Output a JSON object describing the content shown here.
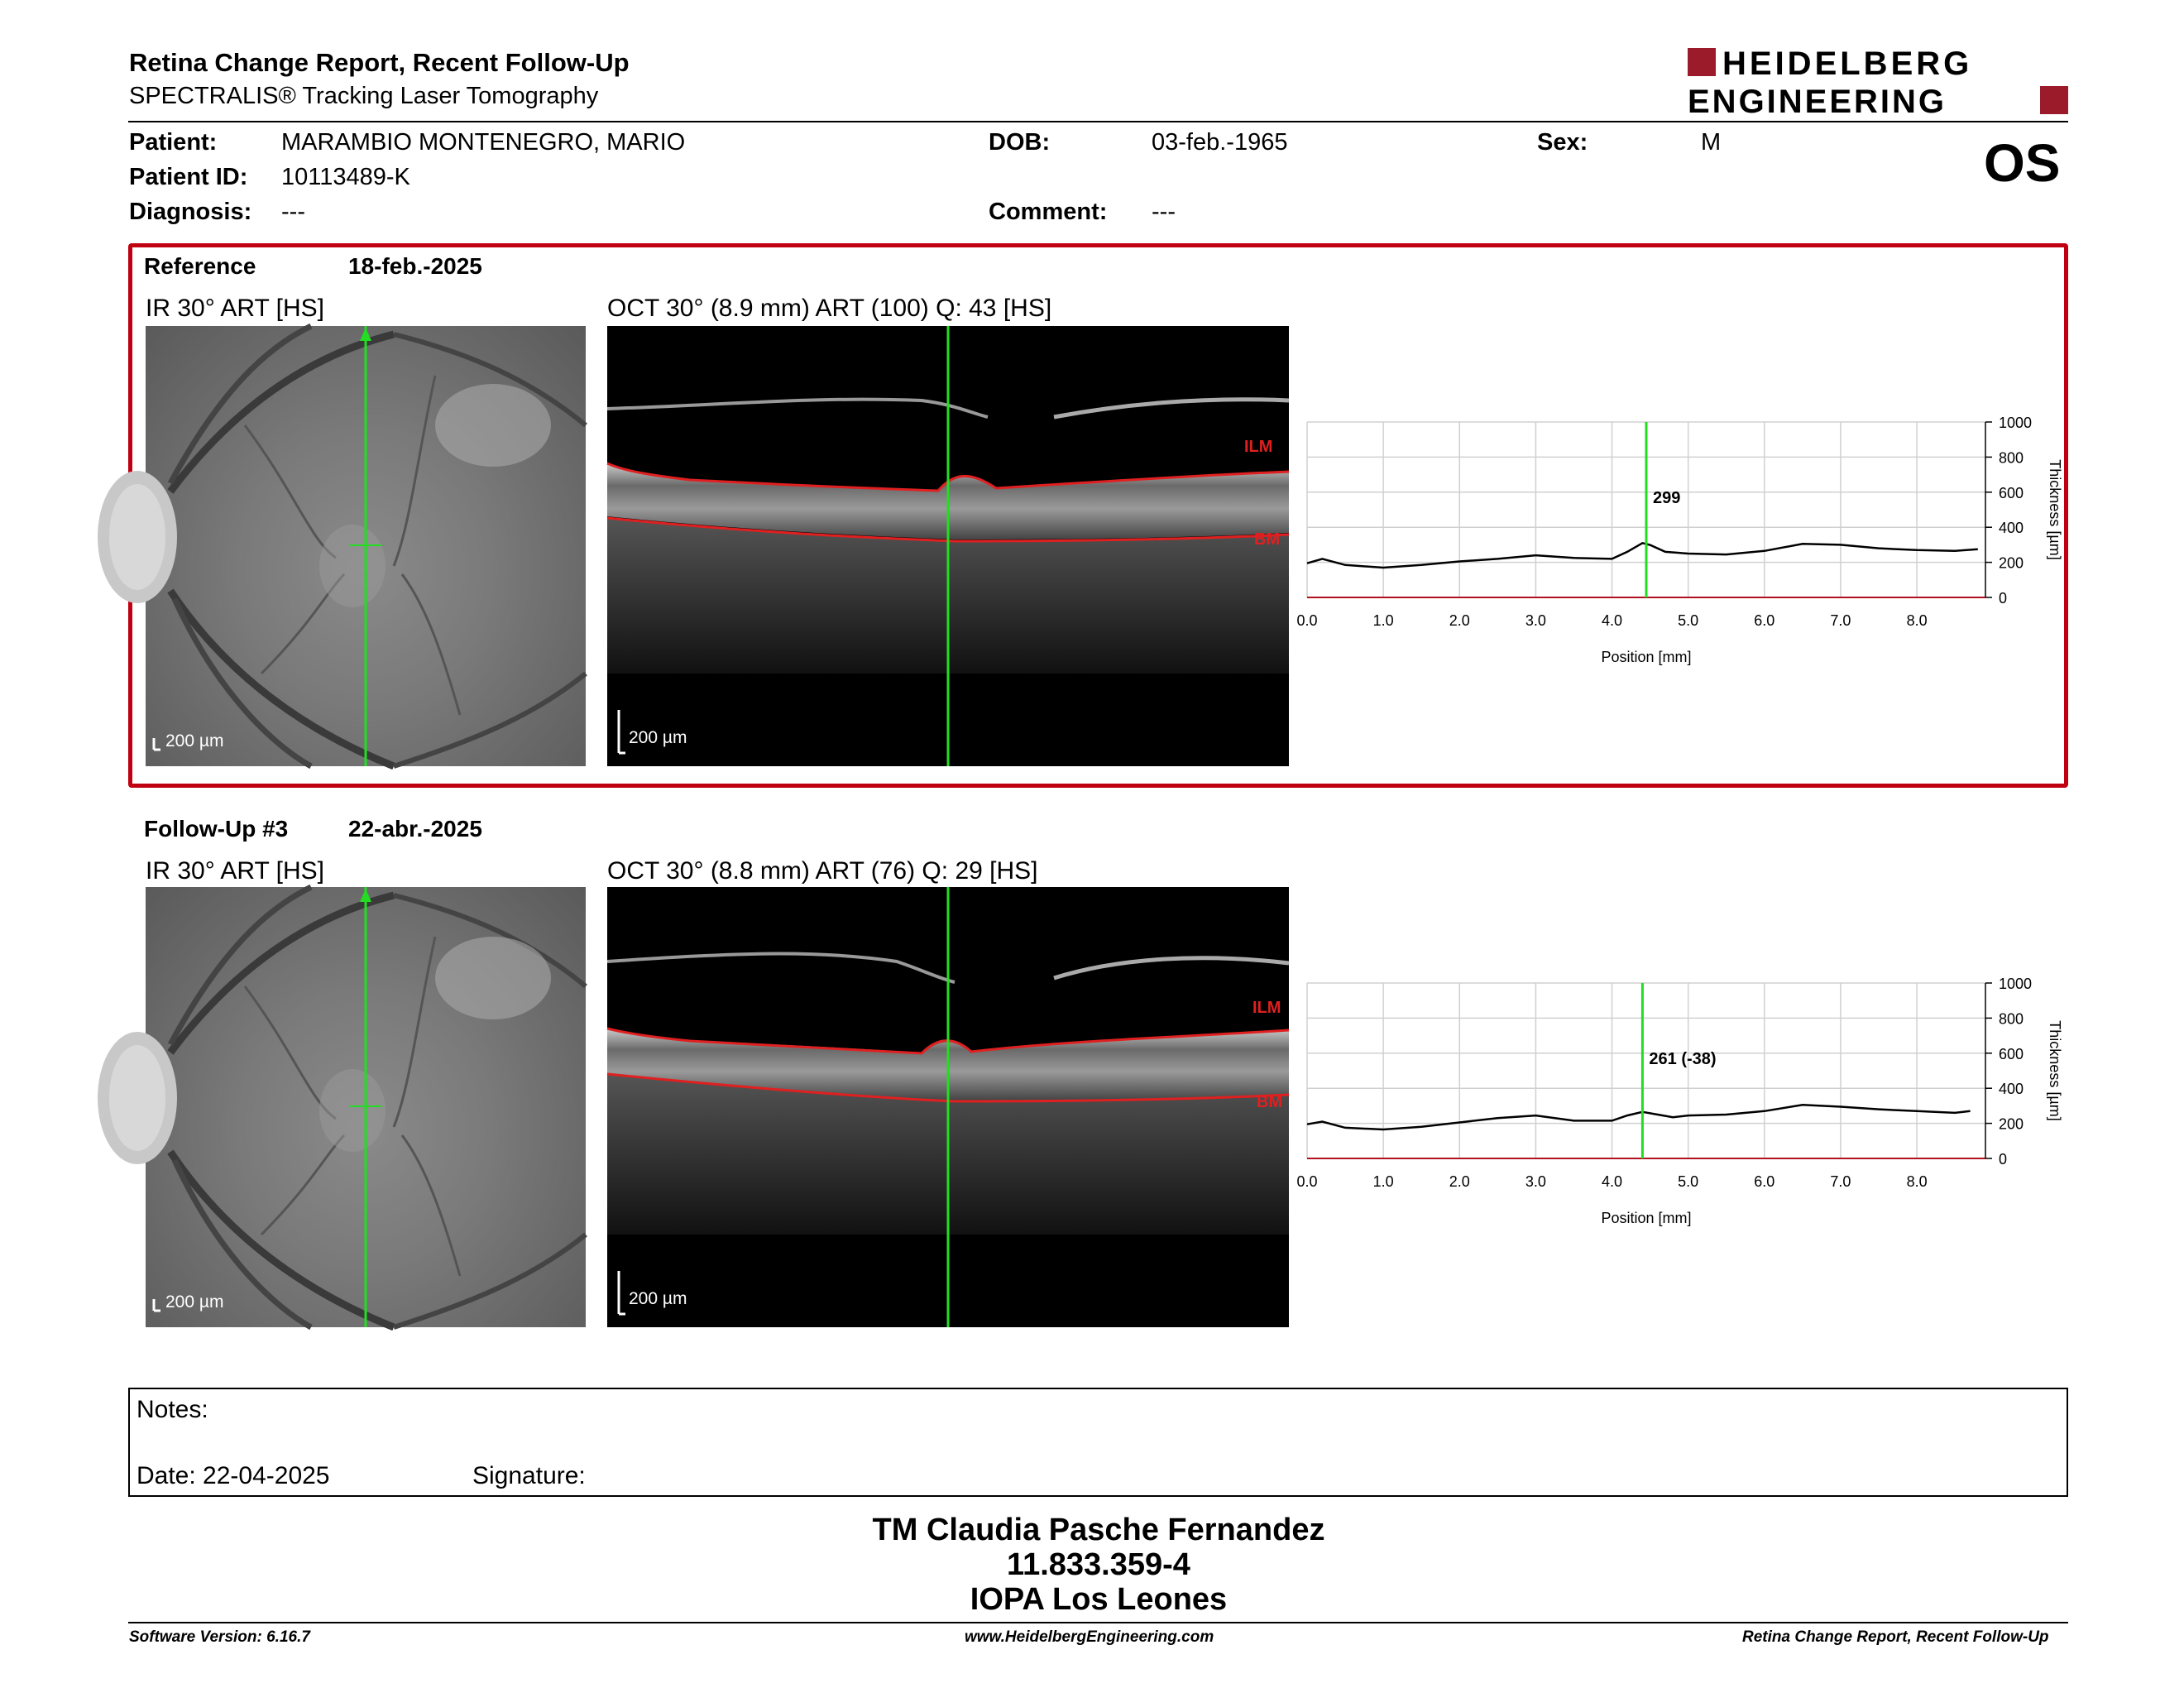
{
  "header": {
    "title": "Retina Change Report, Recent Follow-Up",
    "subtitle": "SPECTRALIS® Tracking Laser Tomography",
    "logo_line1": "HEIDELBERG",
    "logo_line2": "ENGINEERING",
    "brand_color": "#9b1b2a"
  },
  "patient": {
    "patient_label": "Patient:",
    "patient_value": "MARAMBIO MONTENEGRO, MARIO",
    "id_label": "Patient ID:",
    "id_value": "10113489-K",
    "diagnosis_label": "Diagnosis:",
    "diagnosis_value": "---",
    "dob_label": "DOB:",
    "dob_value": "03-feb.-1965",
    "comment_label": "Comment:",
    "comment_value": "---",
    "sex_label": "Sex:",
    "sex_value": "M",
    "eye": "OS"
  },
  "reference": {
    "label": "Reference",
    "date": "18-feb.-2025",
    "ir_caption": "IR 30° ART [HS]",
    "oct_caption": "OCT 30° (8.9 mm) ART (100) Q: 43 [HS]",
    "scale_ir": "200 µm",
    "scale_oct": "200 µm",
    "ilm_label": "ILM",
    "bm_label": "BM",
    "marker_value": "299",
    "border_color": "#c00010"
  },
  "followup": {
    "label": "Follow-Up #3",
    "date": "22-abr.-2025",
    "ir_caption": "IR 30° ART [HS]",
    "oct_caption": "OCT 30° (8.8 mm) ART (76) Q: 29 [HS]",
    "scale_ir": "200 µm",
    "scale_oct": "200 µm",
    "ilm_label": "ILM",
    "bm_label": "BM",
    "marker_value": "261 (-38)"
  },
  "chart_data": [
    {
      "type": "line",
      "title": "",
      "xlabel": "Position [mm]",
      "ylabel": "Thickness [µm]",
      "xlim": [
        0,
        8.9
      ],
      "ylim": [
        0,
        1000
      ],
      "x_ticks": [
        "0.0",
        "1.0",
        "2.0",
        "3.0",
        "4.0",
        "5.0",
        "6.0",
        "7.0",
        "8.0"
      ],
      "y_ticks": [
        "0",
        "200",
        "400",
        "600",
        "800",
        "1000"
      ],
      "grid": true,
      "marker_x": 4.45,
      "marker_label": "299",
      "series": [
        {
          "x": [
            0.0,
            0.2,
            0.5,
            1.0,
            1.5,
            2.0,
            2.5,
            3.0,
            3.5,
            4.0,
            4.2,
            4.4,
            4.5,
            4.7,
            5.0,
            5.5,
            6.0,
            6.5,
            7.0,
            7.5,
            8.0,
            8.5,
            8.8
          ],
          "y": [
            195,
            220,
            185,
            170,
            185,
            205,
            220,
            240,
            225,
            220,
            260,
            310,
            299,
            260,
            250,
            245,
            265,
            305,
            300,
            280,
            270,
            265,
            275
          ]
        }
      ]
    },
    {
      "type": "line",
      "title": "",
      "xlabel": "Position [mm]",
      "ylabel": "Thickness [µm]",
      "xlim": [
        0,
        8.9
      ],
      "ylim": [
        0,
        1000
      ],
      "x_ticks": [
        "0.0",
        "1.0",
        "2.0",
        "3.0",
        "4.0",
        "5.0",
        "6.0",
        "7.0",
        "8.0"
      ],
      "y_ticks": [
        "0",
        "200",
        "400",
        "600",
        "800",
        "1000"
      ],
      "grid": true,
      "marker_x": 4.4,
      "marker_label": "261 (-38)",
      "series": [
        {
          "x": [
            0.0,
            0.2,
            0.5,
            1.0,
            1.5,
            2.0,
            2.5,
            3.0,
            3.5,
            4.0,
            4.2,
            4.4,
            4.6,
            4.8,
            5.0,
            5.5,
            6.0,
            6.5,
            7.0,
            7.5,
            8.0,
            8.5,
            8.7
          ],
          "y": [
            195,
            210,
            175,
            165,
            180,
            205,
            230,
            245,
            215,
            215,
            245,
            265,
            250,
            235,
            245,
            250,
            270,
            305,
            295,
            280,
            270,
            260,
            270
          ]
        }
      ]
    }
  ],
  "notes": {
    "notes_label": "Notes:",
    "date_text": "Date: 22-04-2025",
    "signature_label": "Signature:"
  },
  "signature_block": {
    "name": "TM Claudia Pasche Fernandez",
    "id": "11.833.359-4",
    "institution": "IOPA Los Leones"
  },
  "footer": {
    "software": "Software Version: 6.16.7",
    "website": "www.HeidelbergEngineering.com",
    "report_name": "Retina Change Report, Recent Follow-Up"
  }
}
